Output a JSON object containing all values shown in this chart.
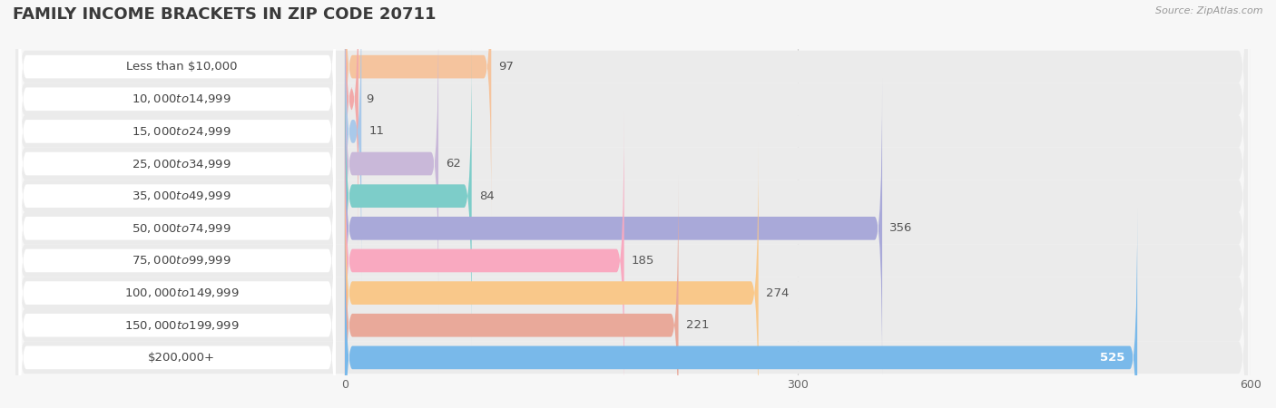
{
  "title": "FAMILY INCOME BRACKETS IN ZIP CODE 20711",
  "source": "Source: ZipAtlas.com",
  "categories": [
    "Less than $10,000",
    "$10,000 to $14,999",
    "$15,000 to $24,999",
    "$25,000 to $34,999",
    "$35,000 to $49,999",
    "$50,000 to $74,999",
    "$75,000 to $99,999",
    "$100,000 to $149,999",
    "$150,000 to $199,999",
    "$200,000+"
  ],
  "values": [
    97,
    9,
    11,
    62,
    84,
    356,
    185,
    274,
    221,
    525
  ],
  "bar_colors": [
    "#f5c49e",
    "#f2a9a9",
    "#a9c9ea",
    "#c9b8d9",
    "#7dcdc9",
    "#a9a9d9",
    "#f9a9c0",
    "#f9c88a",
    "#e9a99a",
    "#79b9ea"
  ],
  "value_label_color_last": "#ffffff",
  "xlim_data": [
    0,
    600
  ],
  "xticks": [
    0,
    300,
    600
  ],
  "background_color": "#f7f7f7",
  "row_bg_color": "#ebebeb",
  "label_box_color": "#ffffff",
  "title_fontsize": 13,
  "label_fontsize": 9.5,
  "value_fontsize": 9.5,
  "source_fontsize": 8
}
